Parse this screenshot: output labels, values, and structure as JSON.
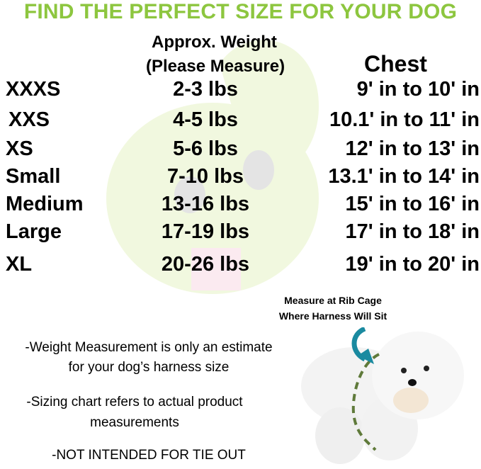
{
  "title": "FIND THE PERFECT SIZE FOR YOUR DOG",
  "headers": {
    "weight_line1": "Approx. Weight",
    "weight_line2": "(Please Measure)",
    "chest": "Chest"
  },
  "rows": [
    {
      "size": "XXXS",
      "weight": "2-3 lbs",
      "chest": "9' in to 10' in"
    },
    {
      "size": "XXS",
      "weight": "4-5 lbs",
      "chest": "10.1' in to 11' in"
    },
    {
      "size": "XS",
      "weight": "5-6 lbs",
      "chest": "12' in to 13' in"
    },
    {
      "size": "Small",
      "weight": "7-10 lbs",
      "chest": "13.1' in to 14' in"
    },
    {
      "size": "Medium",
      "weight": "13-16 lbs",
      "chest": "15' in to 16' in"
    },
    {
      "size": "Large",
      "weight": "17-19 lbs",
      "chest": "17' in to 18' in"
    },
    {
      "size": "XL",
      "weight": "20-26 lbs",
      "chest": "19' in to 20' in"
    }
  ],
  "notes": {
    "n1_line1": "-Weight Measurement is only an estimate",
    "n1_line2": "for your dog’s harness size",
    "n2_line1": "-Sizing chart refers to actual product",
    "n2_line2": "measurements",
    "n3": "-NOT INTENDED FOR TIE OUT"
  },
  "caption": {
    "line1": "Measure at Rib Cage",
    "line2": "Where Harness Will Sit"
  },
  "colors": {
    "title": "#8dc63f",
    "arrow": "#1a8aa0",
    "dashed_line": "#5f7a3a",
    "watermark": "#eef7d9"
  }
}
